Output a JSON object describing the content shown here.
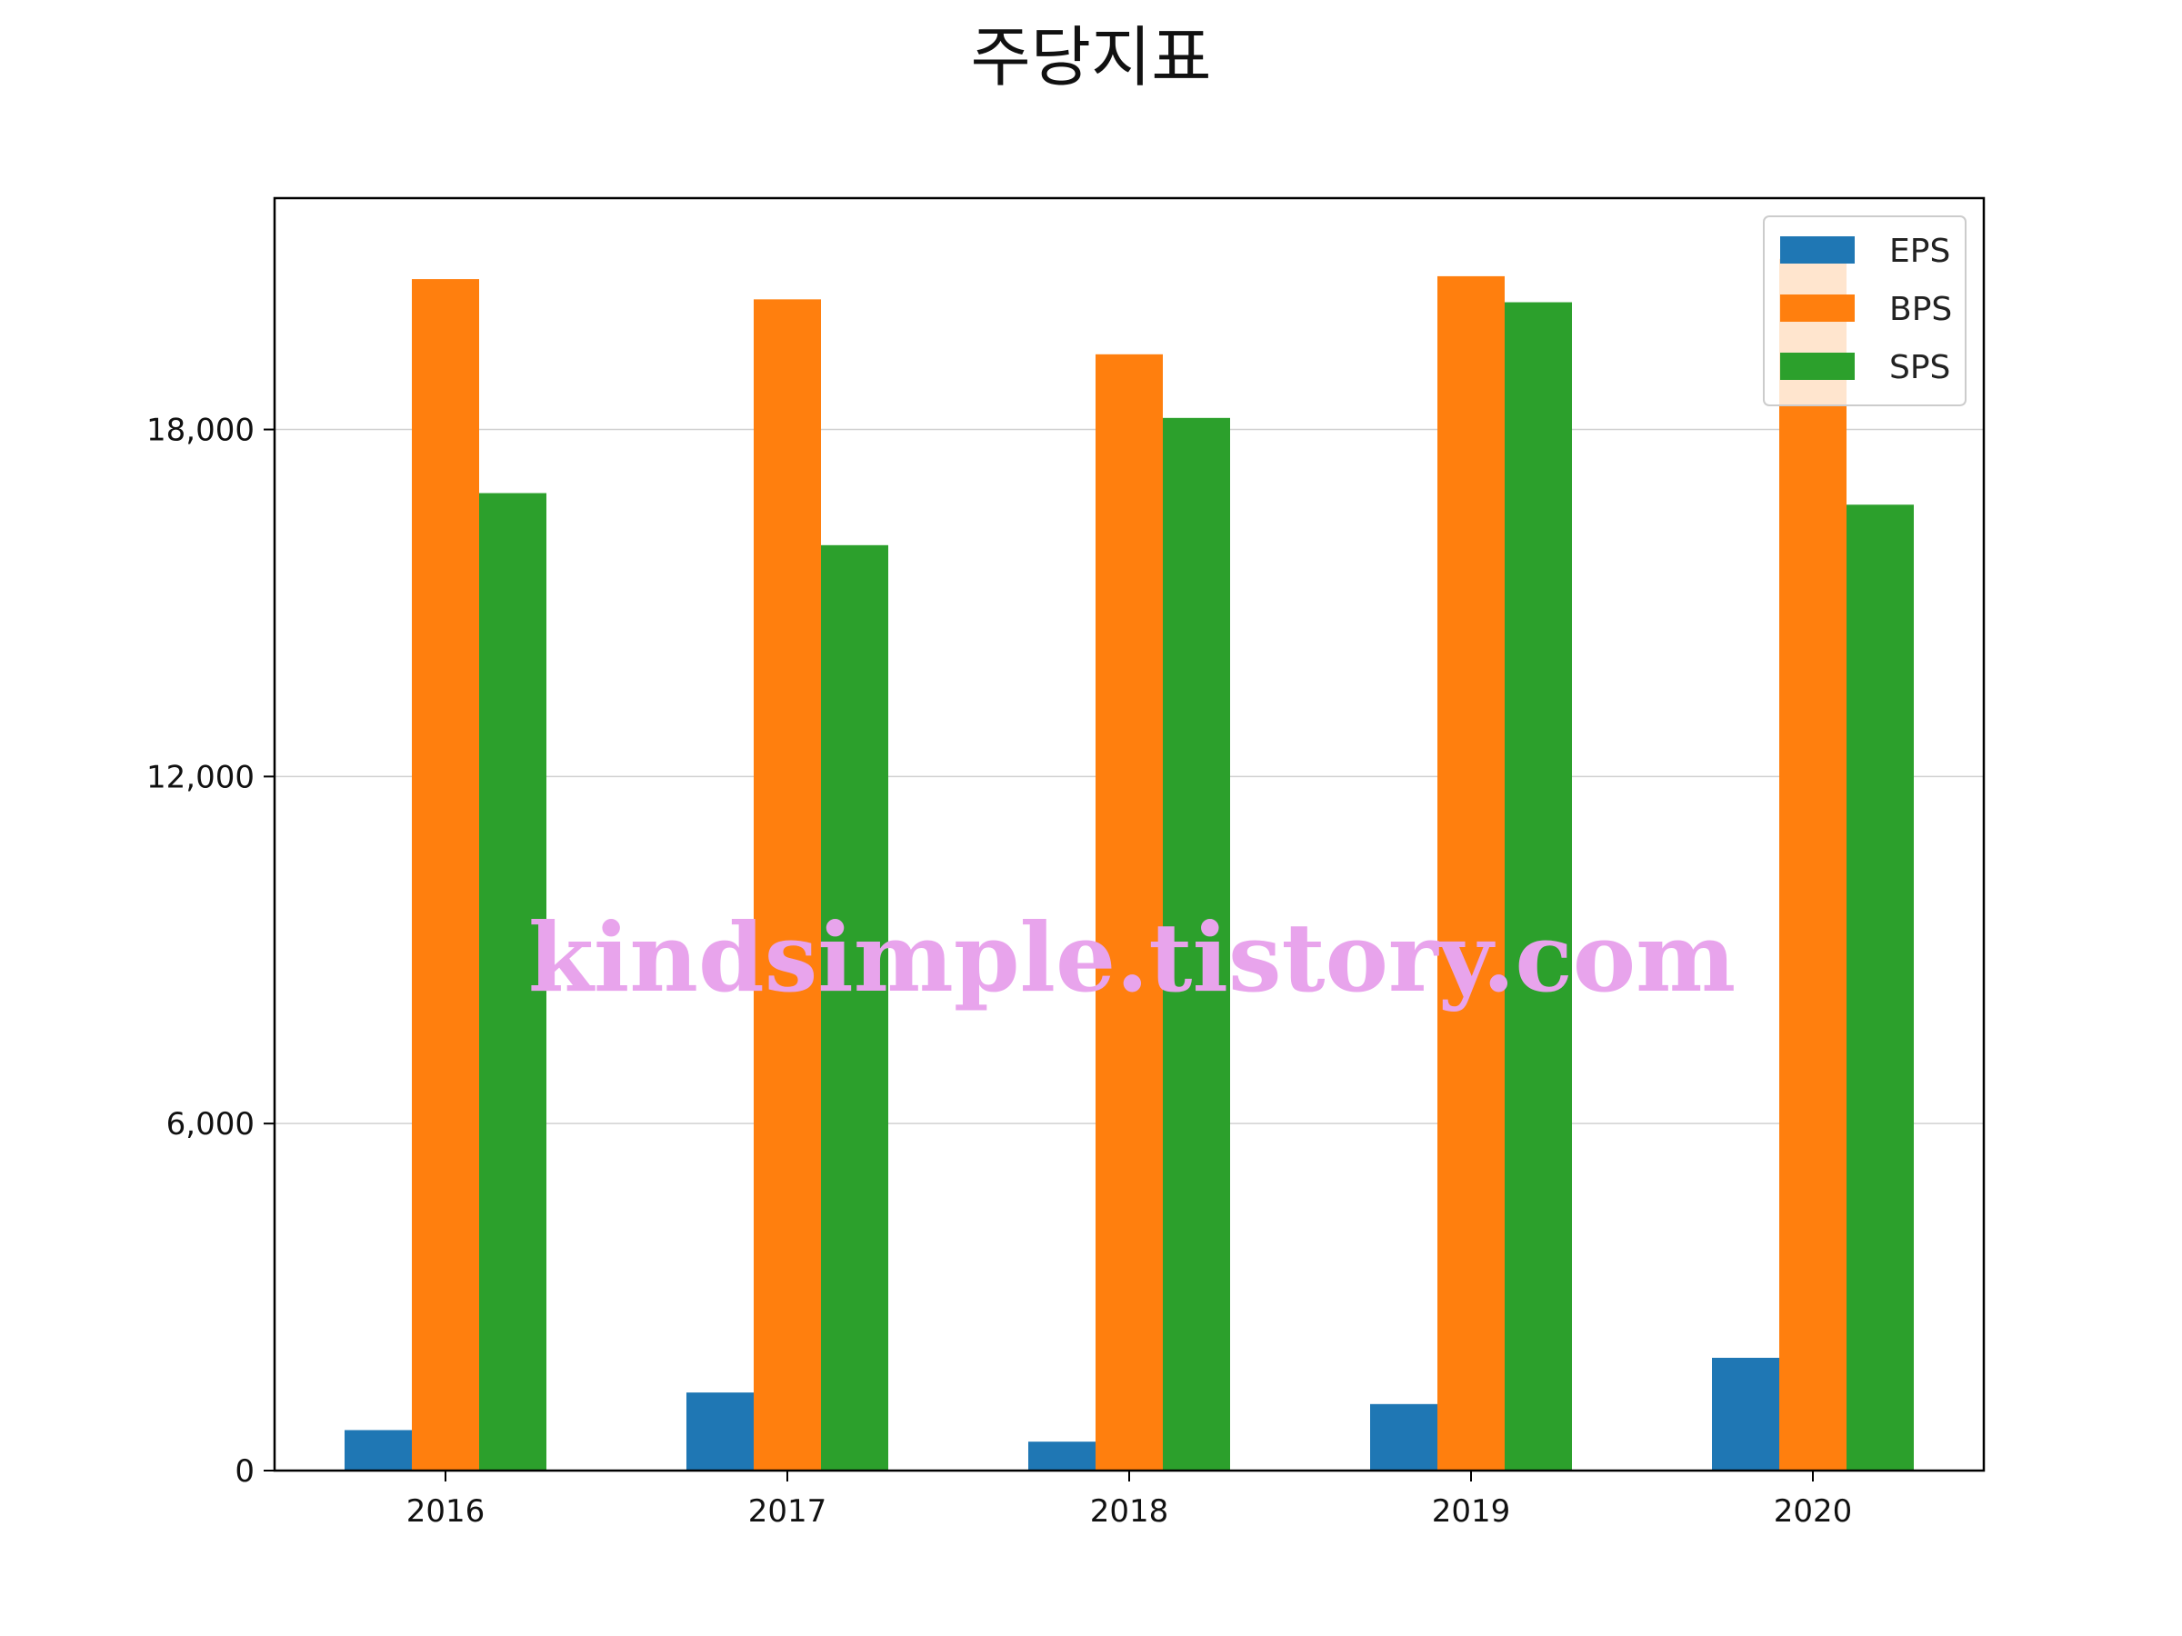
{
  "chart_data": {
    "type": "bar",
    "title": "주당지표",
    "categories": [
      "2016",
      "2017",
      "2018",
      "2019",
      "2020"
    ],
    "series": [
      {
        "name": "EPS",
        "color": "#1f77b4",
        "values": [
          700,
          1350,
          500,
          1150,
          1950
        ]
      },
      {
        "name": "BPS",
        "color": "#ff7f0e",
        "values": [
          20600,
          20250,
          19300,
          20650,
          20950
        ]
      },
      {
        "name": "SPS",
        "color": "#2ca02c",
        "values": [
          16900,
          16000,
          18200,
          20200,
          16700
        ]
      }
    ],
    "yticks": [
      0,
      6000,
      12000,
      18000
    ],
    "ytick_labels": [
      "0",
      "6,000",
      "12,000",
      "18,000"
    ],
    "ylim": [
      0,
      22000
    ],
    "grid": "horizontal",
    "legend_position": "top-right",
    "xlabel": "",
    "ylabel": ""
  },
  "watermark": "kindsimple.tistory.com"
}
